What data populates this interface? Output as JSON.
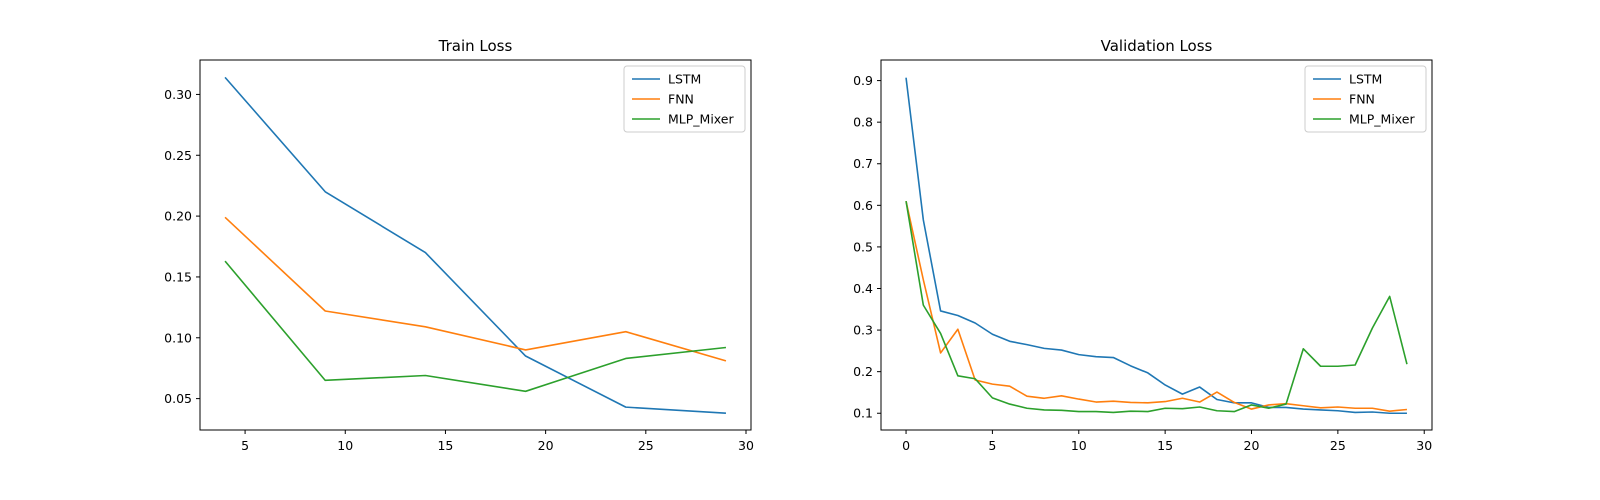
{
  "chart_data": [
    {
      "type": "line",
      "title": "Train Loss",
      "xlabel": "",
      "ylabel": "",
      "xlim": [
        2.75,
        30.25
      ],
      "ylim": [
        0.0242,
        0.3283
      ],
      "xticks": [
        5,
        10,
        15,
        20,
        25,
        30
      ],
      "yticks": [
        0.05,
        0.1,
        0.15,
        0.2,
        0.25,
        0.3
      ],
      "ytick_labels": [
        "0.05",
        "0.10",
        "0.15",
        "0.20",
        "0.25",
        "0.30"
      ],
      "grid": false,
      "legend": "top-right",
      "x": [
        4,
        9,
        14,
        19,
        24,
        29
      ],
      "series": [
        {
          "name": "LSTM",
          "color": "#1f77b4",
          "values": [
            0.314,
            0.22,
            0.17,
            0.085,
            0.043,
            0.038
          ]
        },
        {
          "name": "FNN",
          "color": "#ff7f0e",
          "values": [
            0.199,
            0.122,
            0.109,
            0.09,
            0.105,
            0.081
          ]
        },
        {
          "name": "MLP_Mixer",
          "color": "#2ca02c",
          "values": [
            0.163,
            0.065,
            0.069,
            0.056,
            0.083,
            0.092
          ]
        }
      ]
    },
    {
      "type": "line",
      "title": "Validation Loss",
      "xlabel": "",
      "ylabel": "",
      "xlim": [
        -1.45,
        30.45
      ],
      "ylim": [
        0.0597,
        0.9495
      ],
      "xticks": [
        0,
        5,
        10,
        15,
        20,
        25,
        30
      ],
      "yticks": [
        0.1,
        0.2,
        0.3,
        0.4,
        0.5,
        0.6,
        0.7,
        0.8,
        0.9
      ],
      "ytick_labels": [
        "0.1",
        "0.2",
        "0.3",
        "0.4",
        "0.5",
        "0.6",
        "0.7",
        "0.8",
        "0.9"
      ],
      "grid": false,
      "legend": "top-right",
      "x": [
        0,
        1,
        2,
        3,
        4,
        5,
        6,
        7,
        8,
        9,
        10,
        11,
        12,
        13,
        14,
        15,
        16,
        17,
        18,
        19,
        20,
        21,
        22,
        23,
        24,
        25,
        26,
        27,
        28,
        29
      ],
      "series": [
        {
          "name": "LSTM",
          "color": "#1f77b4",
          "values": [
            0.907,
            0.565,
            0.346,
            0.335,
            0.317,
            0.29,
            0.273,
            0.265,
            0.256,
            0.252,
            0.241,
            0.236,
            0.234,
            0.214,
            0.197,
            0.168,
            0.146,
            0.163,
            0.133,
            0.125,
            0.125,
            0.114,
            0.114,
            0.11,
            0.108,
            0.106,
            0.102,
            0.103,
            0.1,
            0.1
          ]
        },
        {
          "name": "FNN",
          "color": "#ff7f0e",
          "values": [
            0.61,
            0.421,
            0.245,
            0.302,
            0.18,
            0.17,
            0.165,
            0.141,
            0.136,
            0.142,
            0.134,
            0.127,
            0.129,
            0.126,
            0.125,
            0.128,
            0.136,
            0.127,
            0.151,
            0.126,
            0.11,
            0.12,
            0.123,
            0.118,
            0.113,
            0.115,
            0.112,
            0.112,
            0.105,
            0.109
          ]
        },
        {
          "name": "MLP_Mixer",
          "color": "#2ca02c",
          "values": [
            0.61,
            0.36,
            0.292,
            0.19,
            0.183,
            0.137,
            0.122,
            0.112,
            0.108,
            0.107,
            0.104,
            0.104,
            0.102,
            0.105,
            0.104,
            0.112,
            0.111,
            0.115,
            0.106,
            0.104,
            0.12,
            0.112,
            0.122,
            0.255,
            0.213,
            0.213,
            0.216,
            0.305,
            0.381,
            0.218
          ]
        }
      ]
    }
  ]
}
